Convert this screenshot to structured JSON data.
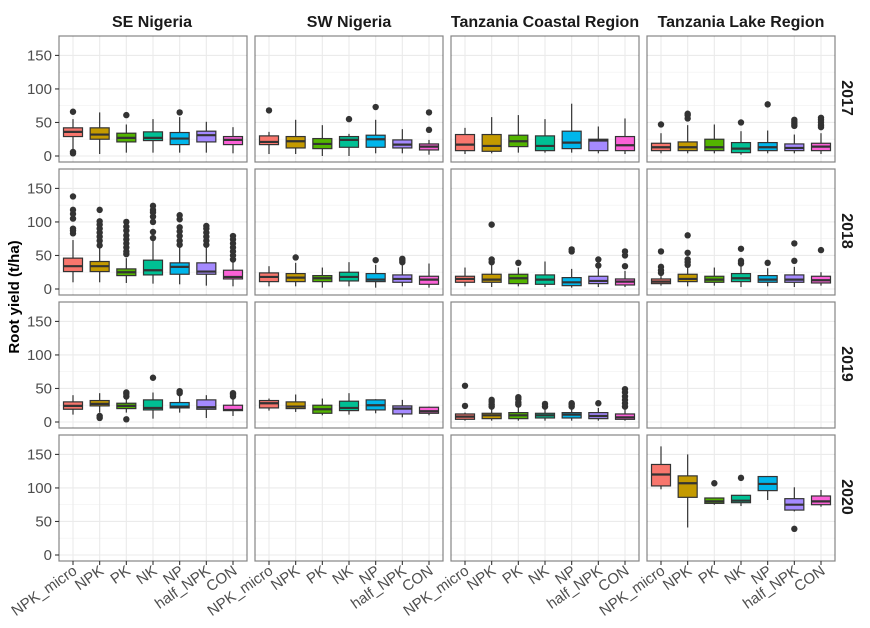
{
  "chart_data": {
    "type": "boxplot",
    "title": "",
    "xlabel": "",
    "ylabel": "Root yield (t/ha)",
    "ylim": [
      0,
      170
    ],
    "yticks": [
      0,
      50,
      100,
      150
    ],
    "grid": true,
    "categories": [
      "NPK_micro",
      "NPK",
      "PK",
      "NK",
      "NP",
      "half_NPK",
      "CON"
    ],
    "colors": [
      "#F8766D",
      "#C49A00",
      "#53B400",
      "#00C094",
      "#00B6EB",
      "#A58AFF",
      "#FB61D7"
    ],
    "facet_columns": [
      "SE Nigeria",
      "SW Nigeria",
      "Tanzania Coastal Region",
      "Tanzania Lake Region"
    ],
    "facet_rows": [
      "2017",
      "2018",
      "2019",
      "2020"
    ],
    "panels": [
      {
        "row": "2017",
        "col": "SE Nigeria",
        "boxes": [
          {
            "min": 8,
            "q1": 29,
            "median": 36,
            "q3": 42,
            "max": 55,
            "outliers": [
              66,
              4,
              6
            ]
          },
          {
            "min": 3,
            "q1": 25,
            "median": 32,
            "q3": 42,
            "max": 65,
            "outliers": []
          },
          {
            "min": 5,
            "q1": 21,
            "median": 27,
            "q3": 34,
            "max": 47,
            "outliers": [
              61
            ]
          },
          {
            "min": 5,
            "q1": 23,
            "median": 27,
            "q3": 36,
            "max": 55,
            "outliers": []
          },
          {
            "min": 5,
            "q1": 17,
            "median": 26,
            "q3": 35,
            "max": 58,
            "outliers": [
              65
            ]
          },
          {
            "min": 5,
            "q1": 21,
            "median": 31,
            "q3": 37,
            "max": 51,
            "outliers": []
          },
          {
            "min": 4,
            "q1": 17,
            "median": 24,
            "q3": 29,
            "max": 43,
            "outliers": []
          }
        ]
      },
      {
        "row": "2017",
        "col": "SW Nigeria",
        "boxes": [
          {
            "min": 3,
            "q1": 17,
            "median": 21,
            "q3": 30,
            "max": 36,
            "outliers": [
              68
            ]
          },
          {
            "min": 3,
            "q1": 12,
            "median": 22,
            "q3": 29,
            "max": 54,
            "outliers": []
          },
          {
            "min": 0,
            "q1": 11,
            "median": 18,
            "q3": 26,
            "max": 46,
            "outliers": []
          },
          {
            "min": 0,
            "q1": 13,
            "median": 24,
            "q3": 29,
            "max": 33,
            "outliers": [
              55
            ]
          },
          {
            "min": 4,
            "q1": 13,
            "median": 25,
            "q3": 31,
            "max": 54,
            "outliers": [
              73
            ]
          },
          {
            "min": 4,
            "q1": 12,
            "median": 17,
            "q3": 24,
            "max": 40,
            "outliers": []
          },
          {
            "min": 2,
            "q1": 9,
            "median": 14,
            "q3": 18,
            "max": 24,
            "outliers": [
              39,
              65
            ]
          }
        ]
      },
      {
        "row": "2017",
        "col": "Tanzania Coastal Region",
        "boxes": [
          {
            "min": 3,
            "q1": 8,
            "median": 17,
            "q3": 32,
            "max": 42,
            "outliers": []
          },
          {
            "min": 4,
            "q1": 7,
            "median": 15,
            "q3": 32,
            "max": 58,
            "outliers": []
          },
          {
            "min": 5,
            "q1": 14,
            "median": 22,
            "q3": 31,
            "max": 61,
            "outliers": []
          },
          {
            "min": 5,
            "q1": 8,
            "median": 15,
            "q3": 30,
            "max": 55,
            "outliers": []
          },
          {
            "min": 5,
            "q1": 11,
            "median": 20,
            "q3": 37,
            "max": 78,
            "outliers": []
          },
          {
            "min": 4,
            "q1": 8,
            "median": 23,
            "q3": 25,
            "max": 44,
            "outliers": []
          },
          {
            "min": 3,
            "q1": 8,
            "median": 16,
            "q3": 29,
            "max": 56,
            "outliers": []
          }
        ]
      },
      {
        "row": "2017",
        "col": "Tanzania Lake Region",
        "boxes": [
          {
            "min": 4,
            "q1": 8,
            "median": 13,
            "q3": 19,
            "max": 34,
            "outliers": [
              47
            ]
          },
          {
            "min": 4,
            "q1": 8,
            "median": 13,
            "q3": 21,
            "max": 46,
            "outliers": [
              56,
              61,
              63
            ]
          },
          {
            "min": 4,
            "q1": 8,
            "median": 13,
            "q3": 25,
            "max": 47,
            "outliers": []
          },
          {
            "min": 2,
            "q1": 5,
            "median": 11,
            "q3": 20,
            "max": 37,
            "outliers": [
              50
            ]
          },
          {
            "min": 4,
            "q1": 8,
            "median": 13,
            "q3": 20,
            "max": 38,
            "outliers": [
              77
            ]
          },
          {
            "min": 4,
            "q1": 8,
            "median": 12,
            "q3": 18,
            "max": 32,
            "outliers": [
              45,
              48,
              51,
              54
            ]
          },
          {
            "min": 3,
            "q1": 8,
            "median": 14,
            "q3": 19,
            "max": 34,
            "outliers": [
              43,
              46,
              50,
              54,
              57
            ]
          }
        ]
      },
      {
        "row": "2018",
        "col": "SE Nigeria",
        "boxes": [
          {
            "min": 10,
            "q1": 26,
            "median": 34,
            "q3": 46,
            "max": 73,
            "outliers": [
              83,
              87,
              90,
              105,
              112,
              118,
              138
            ]
          },
          {
            "min": 10,
            "q1": 26,
            "median": 34,
            "q3": 41,
            "max": 62,
            "outliers": [
              65,
              72,
              78,
              84,
              90,
              96,
              101,
              118
            ]
          },
          {
            "min": 9,
            "q1": 20,
            "median": 25,
            "q3": 30,
            "max": 46,
            "outliers": [
              52,
              56,
              62,
              68,
              74,
              80,
              87,
              93,
              100
            ]
          },
          {
            "min": 8,
            "q1": 21,
            "median": 28,
            "q3": 43,
            "max": 73,
            "outliers": [
              76,
              85,
              100,
              108,
              114,
              118,
              124
            ]
          },
          {
            "min": 7,
            "q1": 22,
            "median": 33,
            "q3": 39,
            "max": 63,
            "outliers": [
              66,
              72,
              79,
              86,
              92,
              104,
              110
            ]
          },
          {
            "min": 5,
            "q1": 22,
            "median": 26,
            "q3": 39,
            "max": 63,
            "outliers": [
              66,
              72,
              78,
              84,
              90,
              94
            ]
          },
          {
            "min": 4,
            "q1": 15,
            "median": 18,
            "q3": 28,
            "max": 40,
            "outliers": [
              44,
              50,
              56,
              62,
              68,
              74,
              79
            ]
          }
        ]
      },
      {
        "row": "2018",
        "col": "SW Nigeria",
        "boxes": [
          {
            "min": 4,
            "q1": 11,
            "median": 18,
            "q3": 24,
            "max": 34,
            "outliers": []
          },
          {
            "min": 4,
            "q1": 11,
            "median": 17,
            "q3": 23,
            "max": 39,
            "outliers": [
              47
            ]
          },
          {
            "min": 2,
            "q1": 11,
            "median": 16,
            "q3": 20,
            "max": 32,
            "outliers": []
          },
          {
            "min": 4,
            "q1": 12,
            "median": 18,
            "q3": 25,
            "max": 40,
            "outliers": []
          },
          {
            "min": 2,
            "q1": 11,
            "median": 14,
            "q3": 23,
            "max": 36,
            "outliers": [
              43
            ]
          },
          {
            "min": 4,
            "q1": 10,
            "median": 15,
            "q3": 21,
            "max": 36,
            "outliers": [
              40,
              43,
              45
            ]
          },
          {
            "min": 2,
            "q1": 7,
            "median": 14,
            "q3": 19,
            "max": 38,
            "outliers": []
          }
        ]
      },
      {
        "row": "2018",
        "col": "Tanzania Coastal Region",
        "boxes": [
          {
            "min": 4,
            "q1": 10,
            "median": 15,
            "q3": 19,
            "max": 32,
            "outliers": []
          },
          {
            "min": 3,
            "q1": 10,
            "median": 14,
            "q3": 22,
            "max": 37,
            "outliers": [
              40,
              44,
              96
            ]
          },
          {
            "min": 4,
            "q1": 8,
            "median": 16,
            "q3": 22,
            "max": 32,
            "outliers": [
              39
            ]
          },
          {
            "min": 3,
            "q1": 7,
            "median": 14,
            "q3": 21,
            "max": 41,
            "outliers": []
          },
          {
            "min": 2,
            "q1": 5,
            "median": 10,
            "q3": 17,
            "max": 30,
            "outliers": [
              56,
              59
            ]
          },
          {
            "min": 3,
            "q1": 8,
            "median": 12,
            "q3": 19,
            "max": 31,
            "outliers": [
              35,
              44
            ]
          },
          {
            "min": 3,
            "q1": 6,
            "median": 11,
            "q3": 15,
            "max": 27,
            "outliers": [
              34,
              50,
              56
            ]
          }
        ]
      },
      {
        "row": "2018",
        "col": "Tanzania Lake Region",
        "boxes": [
          {
            "min": 5,
            "q1": 8,
            "median": 11,
            "q3": 15,
            "max": 20,
            "outliers": [
              24,
              28,
              33,
              56
            ]
          },
          {
            "min": 4,
            "q1": 11,
            "median": 15,
            "q3": 22,
            "max": 33,
            "outliers": [
              36,
              40,
              44,
              54,
              80
            ]
          },
          {
            "min": 5,
            "q1": 10,
            "median": 14,
            "q3": 19,
            "max": 32,
            "outliers": []
          },
          {
            "min": 3,
            "q1": 11,
            "median": 16,
            "q3": 23,
            "max": 34,
            "outliers": [
              38,
              42,
              60
            ]
          },
          {
            "min": 4,
            "q1": 10,
            "median": 14,
            "q3": 20,
            "max": 31,
            "outliers": [
              39
            ]
          },
          {
            "min": 3,
            "q1": 10,
            "median": 14,
            "q3": 21,
            "max": 33,
            "outliers": [
              42,
              68
            ]
          },
          {
            "min": 5,
            "q1": 9,
            "median": 13,
            "q3": 19,
            "max": 25,
            "outliers": [
              58
            ]
          }
        ]
      },
      {
        "row": "2019",
        "col": "SE Nigeria",
        "boxes": [
          {
            "min": 11,
            "q1": 19,
            "median": 24,
            "q3": 30,
            "max": 40,
            "outliers": []
          },
          {
            "min": 14,
            "q1": 24,
            "median": 27,
            "q3": 32,
            "max": 43,
            "outliers": [
              6,
              9
            ]
          },
          {
            "min": 14,
            "q1": 20,
            "median": 24,
            "q3": 28,
            "max": 37,
            "outliers": [
              4,
              38,
              42,
              44
            ]
          },
          {
            "min": 5,
            "q1": 18,
            "median": 21,
            "q3": 33,
            "max": 44,
            "outliers": [
              66
            ]
          },
          {
            "min": 14,
            "q1": 21,
            "median": 23,
            "q3": 29,
            "max": 41,
            "outliers": [
              43,
              46
            ]
          },
          {
            "min": 6,
            "q1": 19,
            "median": 22,
            "q3": 33,
            "max": 40,
            "outliers": []
          },
          {
            "min": 9,
            "q1": 17,
            "median": 18,
            "q3": 25,
            "max": 34,
            "outliers": [
              38,
              41,
              43
            ]
          }
        ]
      },
      {
        "row": "2019",
        "col": "SW Nigeria",
        "boxes": [
          {
            "min": 17,
            "q1": 21,
            "median": 28,
            "q3": 32,
            "max": 35,
            "outliers": []
          },
          {
            "min": 15,
            "q1": 20,
            "median": 23,
            "q3": 30,
            "max": 41,
            "outliers": []
          },
          {
            "min": 10,
            "q1": 13,
            "median": 19,
            "q3": 25,
            "max": 35,
            "outliers": []
          },
          {
            "min": 11,
            "q1": 17,
            "median": 21,
            "q3": 31,
            "max": 43,
            "outliers": []
          },
          {
            "min": 13,
            "q1": 18,
            "median": 25,
            "q3": 33,
            "max": 34,
            "outliers": []
          },
          {
            "min": 7,
            "q1": 12,
            "median": 20,
            "q3": 24,
            "max": 33,
            "outliers": []
          },
          {
            "min": 10,
            "q1": 13,
            "median": 16,
            "q3": 22,
            "max": 23,
            "outliers": []
          }
        ]
      },
      {
        "row": "2019",
        "col": "Tanzania Coastal Region",
        "boxes": [
          {
            "min": 2,
            "q1": 4,
            "median": 8,
            "q3": 12,
            "max": 14,
            "outliers": [
              24,
              54
            ]
          },
          {
            "min": 2,
            "q1": 5,
            "median": 10,
            "q3": 13,
            "max": 20,
            "outliers": [
              23,
              26,
              30,
              33
            ]
          },
          {
            "min": 2,
            "q1": 5,
            "median": 10,
            "q3": 14,
            "max": 22,
            "outliers": [
              26,
              29,
              34,
              37
            ]
          },
          {
            "min": 2,
            "q1": 6,
            "median": 10,
            "q3": 13,
            "max": 20,
            "outliers": [
              23,
              27
            ]
          },
          {
            "min": 2,
            "q1": 6,
            "median": 11,
            "q3": 14,
            "max": 20,
            "outliers": [
              23,
              26,
              28
            ]
          },
          {
            "min": 2,
            "q1": 5,
            "median": 9,
            "q3": 14,
            "max": 21,
            "outliers": [
              28
            ]
          },
          {
            "min": 2,
            "q1": 4,
            "median": 7,
            "q3": 12,
            "max": 20,
            "outliers": [
              23,
              28,
              33,
              38,
              44,
              49
            ]
          }
        ]
      },
      {
        "row": "2019",
        "col": "Tanzania Lake Region",
        "boxes": []
      },
      {
        "row": "2020",
        "col": "SE Nigeria",
        "boxes": []
      },
      {
        "row": "2020",
        "col": "SW Nigeria",
        "boxes": []
      },
      {
        "row": "2020",
        "col": "Tanzania Coastal Region",
        "boxes": []
      },
      {
        "row": "2020",
        "col": "Tanzania Lake Region",
        "boxes": [
          {
            "min": 98,
            "q1": 103,
            "median": 120,
            "q3": 135,
            "max": 162,
            "outliers": []
          },
          {
            "min": 41,
            "q1": 86,
            "median": 107,
            "q3": 118,
            "max": 150,
            "outliers": []
          },
          {
            "min": 75,
            "q1": 77,
            "median": 80,
            "q3": 85,
            "max": 85,
            "outliers": [
              107
            ]
          },
          {
            "min": 73,
            "q1": 78,
            "median": 81,
            "q3": 89,
            "max": 89,
            "outliers": [
              115
            ]
          },
          {
            "min": 82,
            "q1": 96,
            "median": 106,
            "q3": 117,
            "max": 117,
            "outliers": []
          },
          {
            "min": 65,
            "q1": 67,
            "median": 75,
            "q3": 84,
            "max": 101,
            "outliers": [
              39
            ]
          },
          {
            "min": 72,
            "q1": 75,
            "median": 80,
            "q3": 88,
            "max": 97,
            "outliers": []
          }
        ]
      }
    ]
  }
}
